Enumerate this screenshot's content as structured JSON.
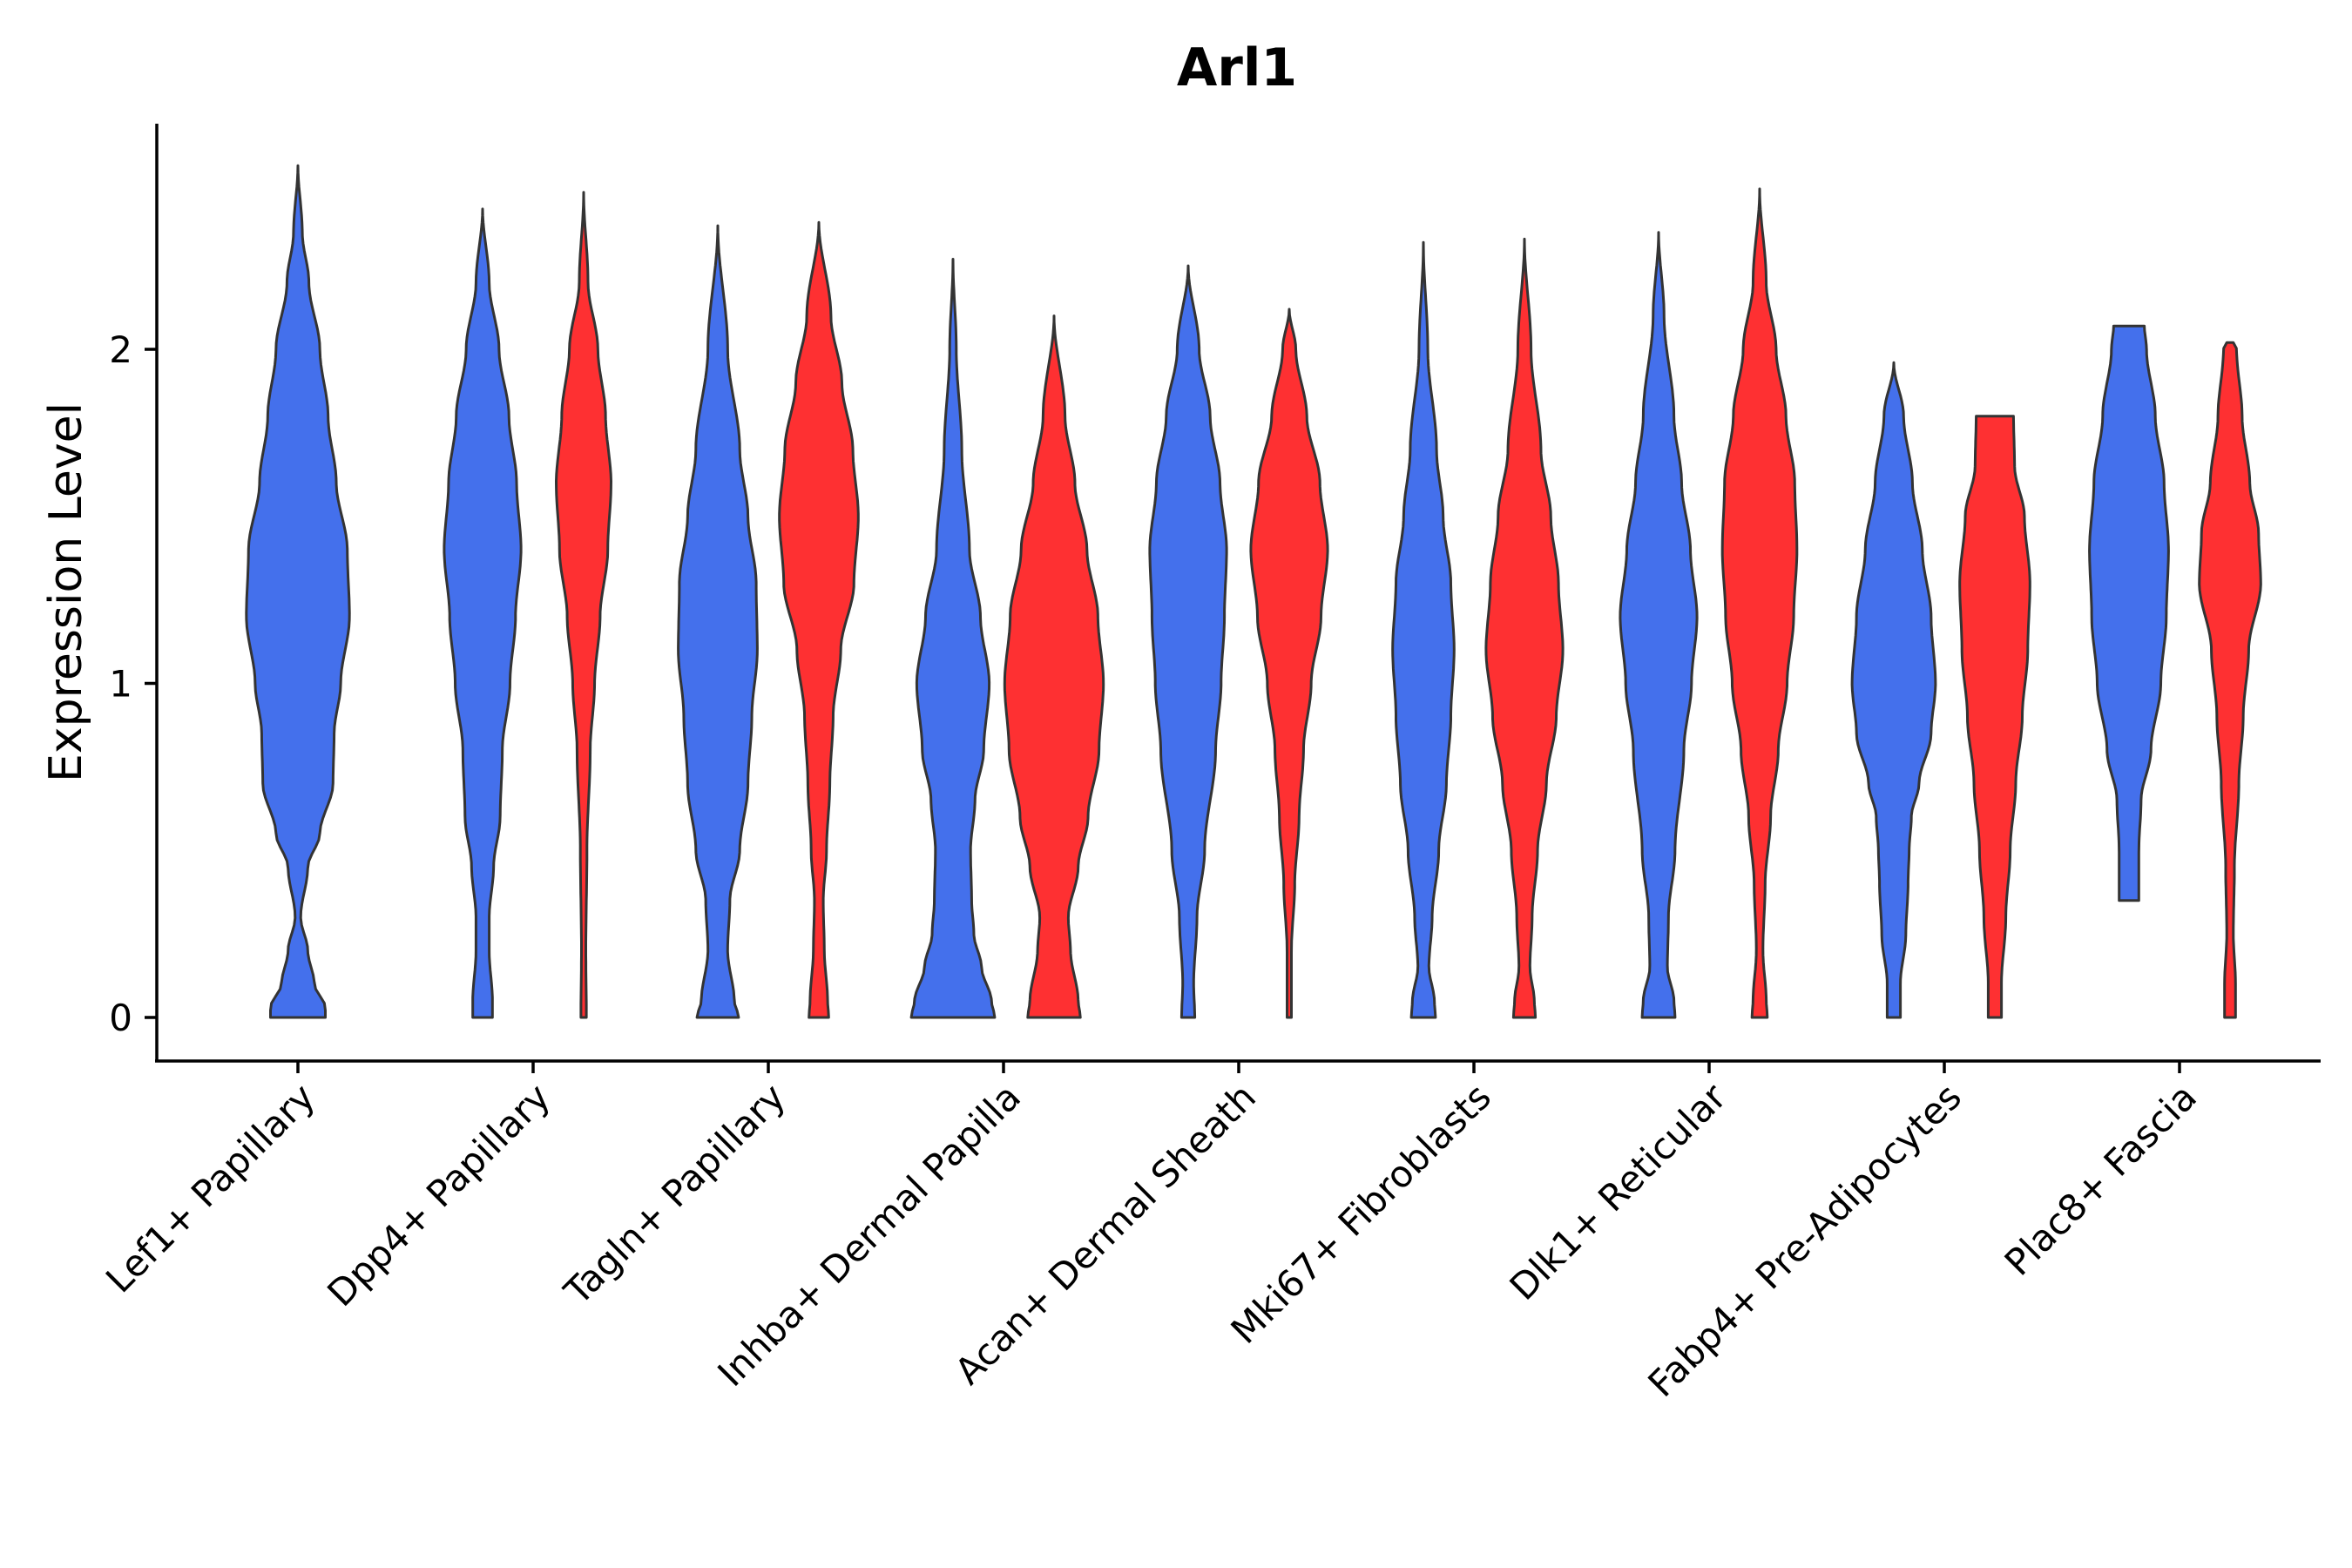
{
  "chart_data": {
    "type": "violin",
    "title": "Arl1",
    "xlabel": "",
    "ylabel": "Expression Level",
    "ylim": [
      -0.13,
      2.7
    ],
    "yticks": [
      0,
      1,
      2
    ],
    "grid": false,
    "categories": [
      "Lef1+ Papillary",
      "Dpp4+ Papillary",
      "Tagln+ Papillary",
      "Inhba+ Dermal Papilla",
      "Acan+ Dermal Sheath",
      "Mki67+ Fibroblasts",
      "Dlk1+ Reticular",
      "Fabp4+ Pre-Adipocytes",
      "Plac8+ Fascia"
    ],
    "colors": {
      "group_a": "#4470EC",
      "group_b": "#FE3032",
      "outline": "#333333"
    },
    "violins": [
      {
        "category": 0,
        "group": "a",
        "ymin": 0,
        "ymax": 2.55,
        "profile": [
          [
            0,
            0.5
          ],
          [
            0.03,
            0.5
          ],
          [
            0.1,
            0.3
          ],
          [
            0.2,
            0.18
          ],
          [
            0.3,
            0.05
          ],
          [
            0.45,
            0.18
          ],
          [
            0.55,
            0.4
          ],
          [
            0.7,
            0.64
          ],
          [
            0.85,
            0.66
          ],
          [
            1.0,
            0.78
          ],
          [
            1.2,
            0.94
          ],
          [
            1.4,
            0.9
          ],
          [
            1.6,
            0.7
          ],
          [
            1.8,
            0.55
          ],
          [
            2.0,
            0.4
          ],
          [
            2.2,
            0.2
          ],
          [
            2.35,
            0.08
          ],
          [
            2.55,
            0
          ]
        ]
      },
      {
        "category": 1,
        "group": "a",
        "ymin": 0,
        "ymax": 2.42,
        "profile": [
          [
            0,
            0.18
          ],
          [
            0.05,
            0.18
          ],
          [
            0.2,
            0.12
          ],
          [
            0.3,
            0.12
          ],
          [
            0.45,
            0.2
          ],
          [
            0.6,
            0.32
          ],
          [
            0.8,
            0.36
          ],
          [
            1.0,
            0.5
          ],
          [
            1.2,
            0.6
          ],
          [
            1.4,
            0.7
          ],
          [
            1.6,
            0.62
          ],
          [
            1.8,
            0.48
          ],
          [
            2.0,
            0.3
          ],
          [
            2.2,
            0.12
          ],
          [
            2.42,
            0
          ]
        ]
      },
      {
        "category": 1,
        "group": "b",
        "ymin": 0,
        "ymax": 2.47,
        "profile": [
          [
            0,
            0.05
          ],
          [
            0.2,
            0.04
          ],
          [
            0.5,
            0.06
          ],
          [
            0.8,
            0.12
          ],
          [
            1.0,
            0.2
          ],
          [
            1.2,
            0.3
          ],
          [
            1.4,
            0.44
          ],
          [
            1.6,
            0.5
          ],
          [
            1.8,
            0.4
          ],
          [
            2.0,
            0.26
          ],
          [
            2.2,
            0.08
          ],
          [
            2.47,
            0
          ]
        ]
      },
      {
        "category": 2,
        "group": "a",
        "ymin": 0,
        "ymax": 2.37,
        "profile": [
          [
            0,
            0.38
          ],
          [
            0.05,
            0.3
          ],
          [
            0.2,
            0.18
          ],
          [
            0.35,
            0.22
          ],
          [
            0.5,
            0.4
          ],
          [
            0.7,
            0.55
          ],
          [
            0.9,
            0.62
          ],
          [
            1.1,
            0.72
          ],
          [
            1.3,
            0.7
          ],
          [
            1.5,
            0.55
          ],
          [
            1.7,
            0.4
          ],
          [
            2.0,
            0.18
          ],
          [
            2.37,
            0
          ]
        ]
      },
      {
        "category": 2,
        "group": "b",
        "ymin": 0,
        "ymax": 2.38,
        "profile": [
          [
            0,
            0.18
          ],
          [
            0.05,
            0.16
          ],
          [
            0.2,
            0.1
          ],
          [
            0.35,
            0.08
          ],
          [
            0.5,
            0.14
          ],
          [
            0.7,
            0.2
          ],
          [
            0.9,
            0.26
          ],
          [
            1.1,
            0.4
          ],
          [
            1.3,
            0.64
          ],
          [
            1.5,
            0.72
          ],
          [
            1.7,
            0.62
          ],
          [
            1.9,
            0.42
          ],
          [
            2.1,
            0.22
          ],
          [
            2.38,
            0
          ]
        ]
      },
      {
        "category": 3,
        "group": "a",
        "ymin": 0,
        "ymax": 2.27,
        "profile": [
          [
            0,
            0.76
          ],
          [
            0.05,
            0.7
          ],
          [
            0.15,
            0.52
          ],
          [
            0.25,
            0.38
          ],
          [
            0.35,
            0.34
          ],
          [
            0.5,
            0.32
          ],
          [
            0.65,
            0.4
          ],
          [
            0.8,
            0.56
          ],
          [
            1.0,
            0.66
          ],
          [
            1.2,
            0.5
          ],
          [
            1.4,
            0.3
          ],
          [
            1.7,
            0.16
          ],
          [
            2.0,
            0.06
          ],
          [
            2.27,
            0
          ]
        ]
      },
      {
        "category": 3,
        "group": "b",
        "ymin": 0,
        "ymax": 2.1,
        "profile": [
          [
            0,
            0.48
          ],
          [
            0.05,
            0.44
          ],
          [
            0.2,
            0.3
          ],
          [
            0.3,
            0.26
          ],
          [
            0.45,
            0.44
          ],
          [
            0.6,
            0.62
          ],
          [
            0.8,
            0.82
          ],
          [
            1.0,
            0.9
          ],
          [
            1.2,
            0.8
          ],
          [
            1.4,
            0.6
          ],
          [
            1.6,
            0.38
          ],
          [
            1.8,
            0.2
          ],
          [
            2.1,
            0
          ]
        ]
      },
      {
        "category": 4,
        "group": "a",
        "ymin": 0,
        "ymax": 2.25,
        "profile": [
          [
            0,
            0.12
          ],
          [
            0.1,
            0.1
          ],
          [
            0.3,
            0.16
          ],
          [
            0.5,
            0.3
          ],
          [
            0.8,
            0.5
          ],
          [
            1.0,
            0.6
          ],
          [
            1.2,
            0.66
          ],
          [
            1.4,
            0.7
          ],
          [
            1.6,
            0.58
          ],
          [
            1.8,
            0.4
          ],
          [
            2.0,
            0.2
          ],
          [
            2.25,
            0
          ]
        ]
      },
      {
        "category": 4,
        "group": "b",
        "ymin": 0,
        "ymax": 2.12,
        "profile": [
          [
            0,
            0.04
          ],
          [
            0.2,
            0.04
          ],
          [
            0.4,
            0.1
          ],
          [
            0.6,
            0.18
          ],
          [
            0.8,
            0.26
          ],
          [
            1.0,
            0.4
          ],
          [
            1.2,
            0.58
          ],
          [
            1.4,
            0.7
          ],
          [
            1.6,
            0.56
          ],
          [
            1.8,
            0.32
          ],
          [
            2.0,
            0.12
          ],
          [
            2.12,
            0
          ]
        ]
      },
      {
        "category": 5,
        "group": "a",
        "ymin": 0,
        "ymax": 2.32,
        "profile": [
          [
            0,
            0.22
          ],
          [
            0.05,
            0.2
          ],
          [
            0.15,
            0.1
          ],
          [
            0.3,
            0.16
          ],
          [
            0.5,
            0.28
          ],
          [
            0.7,
            0.42
          ],
          [
            0.9,
            0.5
          ],
          [
            1.1,
            0.56
          ],
          [
            1.3,
            0.5
          ],
          [
            1.5,
            0.36
          ],
          [
            1.7,
            0.24
          ],
          [
            2.0,
            0.08
          ],
          [
            2.32,
            0
          ]
        ]
      },
      {
        "category": 5,
        "group": "b",
        "ymin": 0,
        "ymax": 2.33,
        "profile": [
          [
            0,
            0.2
          ],
          [
            0.05,
            0.18
          ],
          [
            0.15,
            0.1
          ],
          [
            0.3,
            0.14
          ],
          [
            0.5,
            0.24
          ],
          [
            0.7,
            0.4
          ],
          [
            0.9,
            0.58
          ],
          [
            1.1,
            0.7
          ],
          [
            1.3,
            0.62
          ],
          [
            1.5,
            0.48
          ],
          [
            1.7,
            0.3
          ],
          [
            2.0,
            0.12
          ],
          [
            2.33,
            0
          ]
        ]
      },
      {
        "category": 6,
        "group": "a",
        "ymin": 0,
        "ymax": 2.35,
        "profile": [
          [
            0,
            0.3
          ],
          [
            0.05,
            0.28
          ],
          [
            0.15,
            0.16
          ],
          [
            0.3,
            0.18
          ],
          [
            0.5,
            0.3
          ],
          [
            0.8,
            0.46
          ],
          [
            1.0,
            0.6
          ],
          [
            1.2,
            0.7
          ],
          [
            1.4,
            0.58
          ],
          [
            1.6,
            0.42
          ],
          [
            1.8,
            0.28
          ],
          [
            2.1,
            0.1
          ],
          [
            2.35,
            0
          ]
        ]
      },
      {
        "category": 6,
        "group": "b",
        "ymin": 0,
        "ymax": 2.48,
        "profile": [
          [
            0,
            0.14
          ],
          [
            0.05,
            0.12
          ],
          [
            0.2,
            0.06
          ],
          [
            0.4,
            0.1
          ],
          [
            0.6,
            0.2
          ],
          [
            0.8,
            0.34
          ],
          [
            1.0,
            0.5
          ],
          [
            1.2,
            0.62
          ],
          [
            1.4,
            0.68
          ],
          [
            1.6,
            0.64
          ],
          [
            1.8,
            0.48
          ],
          [
            2.0,
            0.3
          ],
          [
            2.2,
            0.12
          ],
          [
            2.48,
            0
          ]
        ]
      },
      {
        "category": 7,
        "group": "a",
        "ymin": 0,
        "ymax": 1.96,
        "profile": [
          [
            0,
            0.12
          ],
          [
            0.1,
            0.12
          ],
          [
            0.25,
            0.22
          ],
          [
            0.4,
            0.26
          ],
          [
            0.5,
            0.28
          ],
          [
            0.6,
            0.32
          ],
          [
            0.7,
            0.46
          ],
          [
            0.85,
            0.68
          ],
          [
            1.0,
            0.76
          ],
          [
            1.2,
            0.68
          ],
          [
            1.4,
            0.52
          ],
          [
            1.6,
            0.34
          ],
          [
            1.8,
            0.18
          ],
          [
            1.96,
            0
          ]
        ]
      },
      {
        "category": 7,
        "group": "b",
        "ymin": 0,
        "ymax": 1.8,
        "profile": [
          [
            0,
            0.12
          ],
          [
            0.1,
            0.12
          ],
          [
            0.3,
            0.2
          ],
          [
            0.5,
            0.28
          ],
          [
            0.7,
            0.38
          ],
          [
            0.9,
            0.5
          ],
          [
            1.1,
            0.6
          ],
          [
            1.3,
            0.64
          ],
          [
            1.5,
            0.54
          ],
          [
            1.65,
            0.36
          ],
          [
            1.8,
            0.34
          ]
        ]
      },
      {
        "category": 8,
        "group": "a",
        "ymin": 0.35,
        "ymax": 2.07,
        "profile": [
          [
            0.35,
            0.18
          ],
          [
            0.5,
            0.18
          ],
          [
            0.65,
            0.22
          ],
          [
            0.8,
            0.4
          ],
          [
            1.0,
            0.58
          ],
          [
            1.2,
            0.68
          ],
          [
            1.4,
            0.72
          ],
          [
            1.6,
            0.64
          ],
          [
            1.8,
            0.48
          ],
          [
            2.0,
            0.32
          ],
          [
            2.07,
            0.28
          ]
        ]
      },
      {
        "category": 8,
        "group": "b",
        "ymin": 0,
        "ymax": 2.02,
        "profile": [
          [
            0,
            0.1
          ],
          [
            0.1,
            0.1
          ],
          [
            0.25,
            0.06
          ],
          [
            0.45,
            0.08
          ],
          [
            0.7,
            0.16
          ],
          [
            0.9,
            0.24
          ],
          [
            1.1,
            0.34
          ],
          [
            1.3,
            0.56
          ],
          [
            1.45,
            0.52
          ],
          [
            1.6,
            0.36
          ],
          [
            1.8,
            0.22
          ],
          [
            2.0,
            0.12
          ],
          [
            2.02,
            0.06
          ]
        ]
      }
    ]
  }
}
